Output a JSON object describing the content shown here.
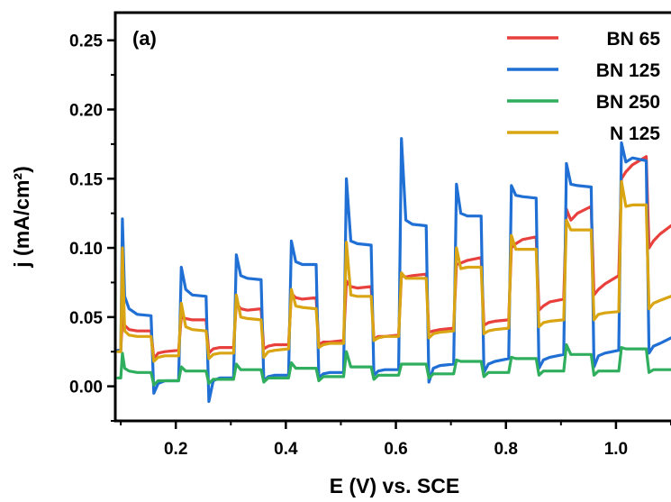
{
  "chart_data": {
    "type": "line",
    "panel_label": "(a)",
    "xlabel": "E (V) vs. SCE",
    "ylabel": "j (mA/cm²)",
    "xlim": [
      0.09,
      1.1
    ],
    "ylim": [
      -0.025,
      0.27
    ],
    "x_ticks": [
      0.2,
      0.4,
      0.6,
      0.8,
      1.0
    ],
    "x_tick_labels": [
      "0.2",
      "0.4",
      "0.6",
      "0.8",
      "1.0"
    ],
    "y_ticks": [
      0.0,
      0.05,
      0.1,
      0.15,
      0.2,
      0.25
    ],
    "y_tick_labels": [
      "0.00",
      "0.05",
      "0.10",
      "0.15",
      "0.20",
      "0.25"
    ],
    "legend_position": "top-right",
    "grid": false,
    "series": [
      {
        "name": "BN  65",
        "color": "#e8403c",
        "x": [
          0.095,
          0.1,
          0.103,
          0.107,
          0.115,
          0.13,
          0.155,
          0.16,
          0.168,
          0.18,
          0.205,
          0.21,
          0.218,
          0.23,
          0.255,
          0.26,
          0.268,
          0.28,
          0.305,
          0.31,
          0.318,
          0.33,
          0.355,
          0.36,
          0.368,
          0.38,
          0.405,
          0.41,
          0.418,
          0.43,
          0.455,
          0.46,
          0.468,
          0.48,
          0.505,
          0.51,
          0.518,
          0.53,
          0.555,
          0.56,
          0.568,
          0.58,
          0.605,
          0.61,
          0.618,
          0.63,
          0.655,
          0.66,
          0.668,
          0.68,
          0.705,
          0.71,
          0.718,
          0.73,
          0.755,
          0.76,
          0.768,
          0.78,
          0.805,
          0.81,
          0.818,
          0.83,
          0.855,
          0.86,
          0.868,
          0.88,
          0.905,
          0.91,
          0.918,
          0.93,
          0.955,
          0.96,
          0.968,
          0.98,
          1.005,
          1.01,
          1.018,
          1.03,
          1.055,
          1.06,
          1.068,
          1.08,
          1.1
        ],
        "y": [
          0.026,
          0.026,
          0.05,
          0.044,
          0.041,
          0.04,
          0.04,
          0.02,
          0.024,
          0.025,
          0.026,
          0.05,
          0.049,
          0.048,
          0.048,
          0.024,
          0.027,
          0.028,
          0.028,
          0.06,
          0.056,
          0.055,
          0.056,
          0.027,
          0.029,
          0.03,
          0.03,
          0.067,
          0.064,
          0.063,
          0.064,
          0.03,
          0.032,
          0.032,
          0.033,
          0.076,
          0.072,
          0.071,
          0.072,
          0.034,
          0.036,
          0.036,
          0.037,
          0.08,
          0.079,
          0.08,
          0.081,
          0.039,
          0.04,
          0.041,
          0.042,
          0.088,
          0.089,
          0.091,
          0.093,
          0.044,
          0.046,
          0.047,
          0.048,
          0.1,
          0.103,
          0.106,
          0.108,
          0.055,
          0.058,
          0.061,
          0.063,
          0.128,
          0.12,
          0.125,
          0.13,
          0.066,
          0.07,
          0.074,
          0.08,
          0.15,
          0.155,
          0.16,
          0.166,
          0.1,
          0.105,
          0.11,
          0.116
        ]
      },
      {
        "name": "BN 125",
        "color": "#1f6fd4",
        "x": [
          0.095,
          0.1,
          0.103,
          0.107,
          0.115,
          0.13,
          0.155,
          0.16,
          0.168,
          0.18,
          0.205,
          0.21,
          0.218,
          0.23,
          0.255,
          0.26,
          0.268,
          0.28,
          0.305,
          0.31,
          0.318,
          0.33,
          0.355,
          0.36,
          0.368,
          0.38,
          0.405,
          0.41,
          0.418,
          0.43,
          0.455,
          0.46,
          0.468,
          0.48,
          0.505,
          0.51,
          0.518,
          0.53,
          0.555,
          0.56,
          0.568,
          0.58,
          0.605,
          0.61,
          0.618,
          0.63,
          0.655,
          0.66,
          0.668,
          0.68,
          0.705,
          0.71,
          0.718,
          0.73,
          0.755,
          0.76,
          0.768,
          0.78,
          0.805,
          0.81,
          0.818,
          0.83,
          0.855,
          0.86,
          0.868,
          0.88,
          0.905,
          0.91,
          0.918,
          0.93,
          0.955,
          0.96,
          0.968,
          0.98,
          1.005,
          1.01,
          1.018,
          1.03,
          1.055,
          1.06,
          1.068,
          1.08,
          1.1
        ],
        "y": [
          0.026,
          0.026,
          0.121,
          0.065,
          0.056,
          0.052,
          0.051,
          -0.005,
          0.002,
          0.004,
          0.004,
          0.086,
          0.07,
          0.066,
          0.065,
          -0.011,
          0.004,
          0.006,
          0.006,
          0.095,
          0.08,
          0.078,
          0.077,
          0.004,
          0.007,
          0.008,
          0.008,
          0.105,
          0.09,
          0.088,
          0.088,
          0.006,
          0.009,
          0.01,
          0.01,
          0.15,
          0.105,
          0.103,
          0.102,
          0.008,
          0.011,
          0.012,
          0.012,
          0.179,
          0.12,
          0.117,
          0.116,
          0.003,
          0.013,
          0.015,
          0.016,
          0.146,
          0.125,
          0.123,
          0.123,
          0.01,
          0.016,
          0.018,
          0.02,
          0.145,
          0.138,
          0.137,
          0.136,
          0.013,
          0.019,
          0.021,
          0.023,
          0.161,
          0.146,
          0.145,
          0.144,
          0.014,
          0.022,
          0.024,
          0.026,
          0.176,
          0.162,
          0.165,
          0.163,
          0.024,
          0.029,
          0.031,
          0.035
        ]
      },
      {
        "name": "BN 250",
        "color": "#2fae5e",
        "x": [
          0.095,
          0.1,
          0.103,
          0.107,
          0.115,
          0.13,
          0.155,
          0.16,
          0.168,
          0.18,
          0.205,
          0.21,
          0.218,
          0.23,
          0.255,
          0.26,
          0.268,
          0.28,
          0.305,
          0.31,
          0.318,
          0.33,
          0.355,
          0.36,
          0.368,
          0.38,
          0.405,
          0.41,
          0.418,
          0.43,
          0.455,
          0.46,
          0.468,
          0.48,
          0.505,
          0.51,
          0.518,
          0.53,
          0.555,
          0.56,
          0.568,
          0.58,
          0.605,
          0.61,
          0.618,
          0.63,
          0.655,
          0.66,
          0.668,
          0.68,
          0.705,
          0.71,
          0.718,
          0.73,
          0.755,
          0.76,
          0.768,
          0.78,
          0.805,
          0.81,
          0.818,
          0.83,
          0.855,
          0.86,
          0.868,
          0.88,
          0.905,
          0.91,
          0.918,
          0.93,
          0.955,
          0.96,
          0.968,
          0.98,
          1.005,
          1.01,
          1.018,
          1.03,
          1.055,
          1.06,
          1.068,
          1.08,
          1.1
        ],
        "y": [
          0.006,
          0.006,
          0.024,
          0.013,
          0.011,
          0.01,
          0.01,
          0.001,
          0.004,
          0.004,
          0.004,
          0.014,
          0.011,
          0.011,
          0.011,
          0.002,
          0.005,
          0.005,
          0.005,
          0.016,
          0.012,
          0.012,
          0.012,
          0.003,
          0.006,
          0.006,
          0.006,
          0.017,
          0.013,
          0.013,
          0.013,
          0.004,
          0.007,
          0.007,
          0.007,
          0.025,
          0.014,
          0.014,
          0.014,
          0.005,
          0.008,
          0.008,
          0.008,
          0.016,
          0.016,
          0.016,
          0.016,
          0.006,
          0.009,
          0.009,
          0.009,
          0.019,
          0.018,
          0.018,
          0.018,
          0.007,
          0.01,
          0.01,
          0.01,
          0.021,
          0.02,
          0.02,
          0.02,
          0.008,
          0.011,
          0.011,
          0.011,
          0.03,
          0.023,
          0.023,
          0.023,
          0.008,
          0.011,
          0.011,
          0.011,
          0.028,
          0.027,
          0.027,
          0.027,
          0.01,
          0.012,
          0.012,
          0.012
        ]
      },
      {
        "name": "N 125",
        "color": "#d9a512",
        "x": [
          0.095,
          0.1,
          0.103,
          0.107,
          0.115,
          0.13,
          0.155,
          0.16,
          0.168,
          0.18,
          0.205,
          0.21,
          0.218,
          0.23,
          0.255,
          0.26,
          0.268,
          0.28,
          0.305,
          0.31,
          0.318,
          0.33,
          0.355,
          0.36,
          0.368,
          0.38,
          0.405,
          0.41,
          0.418,
          0.43,
          0.455,
          0.46,
          0.468,
          0.48,
          0.505,
          0.51,
          0.518,
          0.53,
          0.555,
          0.56,
          0.568,
          0.58,
          0.605,
          0.61,
          0.618,
          0.63,
          0.655,
          0.66,
          0.668,
          0.68,
          0.705,
          0.71,
          0.718,
          0.73,
          0.755,
          0.76,
          0.768,
          0.78,
          0.805,
          0.81,
          0.818,
          0.83,
          0.855,
          0.86,
          0.868,
          0.88,
          0.905,
          0.91,
          0.918,
          0.93,
          0.955,
          0.96,
          0.968,
          0.98,
          1.005,
          1.01,
          1.018,
          1.03,
          1.055,
          1.06,
          1.068,
          1.08,
          1.1
        ],
        "y": [
          0.025,
          0.025,
          0.1,
          0.04,
          0.037,
          0.036,
          0.036,
          0.018,
          0.021,
          0.022,
          0.022,
          0.06,
          0.043,
          0.041,
          0.04,
          0.02,
          0.023,
          0.024,
          0.024,
          0.066,
          0.05,
          0.049,
          0.048,
          0.021,
          0.025,
          0.026,
          0.027,
          0.07,
          0.058,
          0.057,
          0.056,
          0.028,
          0.03,
          0.031,
          0.031,
          0.104,
          0.066,
          0.065,
          0.065,
          0.033,
          0.035,
          0.036,
          0.036,
          0.082,
          0.078,
          0.078,
          0.078,
          0.035,
          0.038,
          0.039,
          0.04,
          0.1,
          0.085,
          0.086,
          0.086,
          0.038,
          0.04,
          0.041,
          0.042,
          0.109,
          0.099,
          0.099,
          0.099,
          0.043,
          0.046,
          0.047,
          0.048,
          0.12,
          0.113,
          0.113,
          0.113,
          0.048,
          0.052,
          0.053,
          0.054,
          0.148,
          0.13,
          0.131,
          0.131,
          0.056,
          0.06,
          0.062,
          0.065
        ]
      }
    ]
  }
}
